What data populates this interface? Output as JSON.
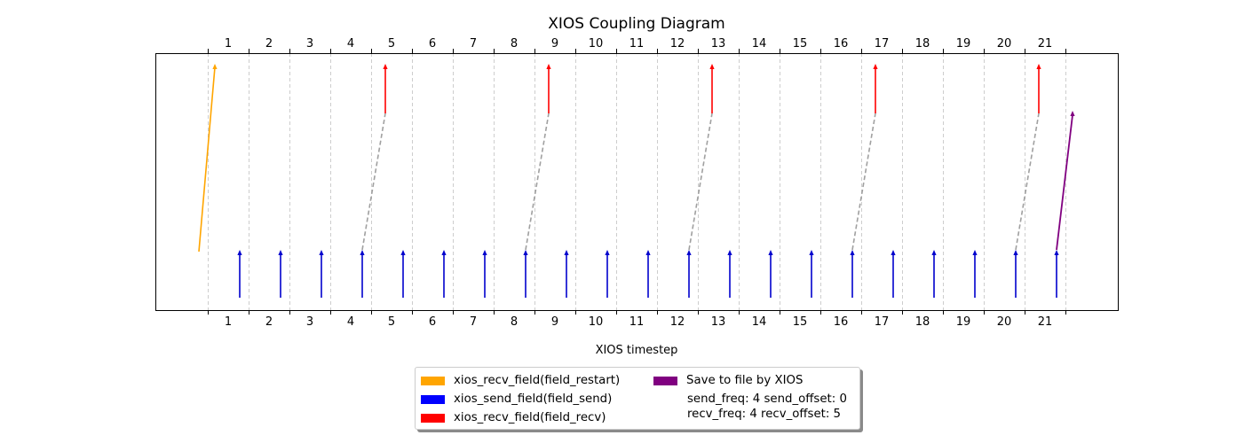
{
  "chart_data": {
    "type": "timeline",
    "title": "XIOS Coupling Diagram",
    "xlabel": "XIOS timestep",
    "ylabel": "",
    "timesteps": [
      1,
      2,
      3,
      4,
      5,
      6,
      7,
      8,
      9,
      10,
      11,
      12,
      13,
      14,
      15,
      16,
      17,
      18,
      19,
      20,
      21
    ],
    "grid": "vertical dashed",
    "legend_position": "bottom-center",
    "series": [
      {
        "name": "xios_recv_field(field_restart)",
        "color": "#FFA500",
        "kind": "restart",
        "from_timestep": 0,
        "to_timestep": 1
      },
      {
        "name": "xios_send_field(field_send)",
        "color": "#0000FF",
        "kind": "send",
        "timesteps": [
          1,
          2,
          3,
          4,
          5,
          6,
          7,
          8,
          9,
          10,
          11,
          12,
          13,
          14,
          15,
          16,
          17,
          18,
          19,
          20,
          21
        ]
      },
      {
        "name": "xios_recv_field(field_recv)",
        "color": "#FF0000",
        "kind": "recv",
        "timesteps": [
          5,
          9,
          13,
          17,
          21
        ]
      },
      {
        "name": "Save to file by XIOS",
        "color": "#800080",
        "kind": "save",
        "from_timestep": 21,
        "to_timestep": 22
      }
    ],
    "couplings": [
      {
        "send_timestep": 4,
        "recv_timestep": 5
      },
      {
        "send_timestep": 8,
        "recv_timestep": 9
      },
      {
        "send_timestep": 12,
        "recv_timestep": 13
      },
      {
        "send_timestep": 16,
        "recv_timestep": 17
      },
      {
        "send_timestep": 20,
        "recv_timestep": 21
      }
    ],
    "legend_info": [
      "send_freq: 4 send_offset: 0",
      "recv_freq: 4 recv_offset: 5"
    ]
  }
}
